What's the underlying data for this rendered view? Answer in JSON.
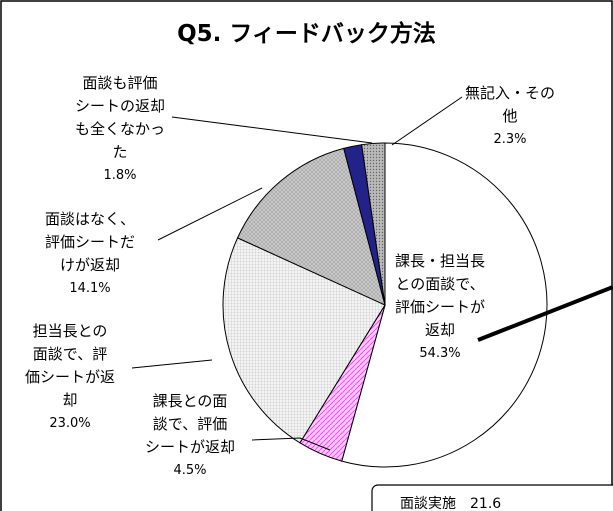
{
  "chart_data": {
    "type": "pie",
    "title": "Q5. フィードバック方法",
    "categories": [
      "課長・担当長\nとの面談で、\n評価シートが\n返却",
      "課長との面\n談で、評価\nシートが返却",
      "担当長との\n面談で、評\n価シートが返\n却",
      "面談はなく、\n評価シートだ\nけが返却",
      "面談も評価\nシートの返却\nも全くなかっ\nた",
      "無記入・その\n他"
    ],
    "values": [
      54.3,
      4.5,
      23.0,
      14.1,
      1.8,
      2.3
    ],
    "value_labels": [
      "54.3%",
      "4.5%",
      "23.0%",
      "14.1%",
      "1.8%",
      "2.3%"
    ],
    "annotation": "面談実施　21.6"
  }
}
